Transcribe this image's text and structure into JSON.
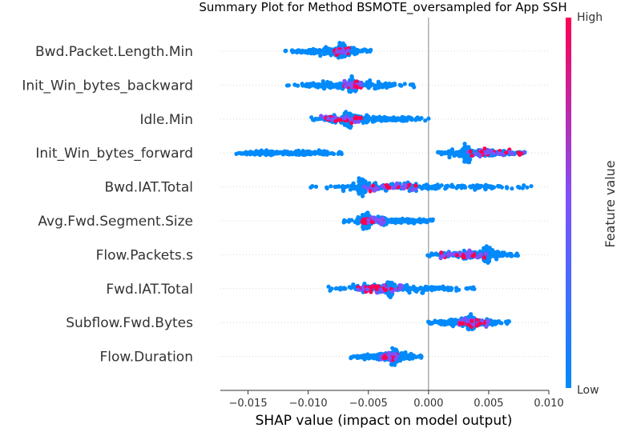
{
  "chart_data": {
    "type": "scatter",
    "title": "Summary Plot for Method BSMOTE_oversampled for App SSH",
    "xlabel": "SHAP value (impact on model output)",
    "xlim": [
      -0.0173,
      0.01
    ],
    "xticks": [
      "−0.015",
      "−0.010",
      "−0.005",
      "0.000",
      "0.005",
      "0.010"
    ],
    "xtick_values": [
      -0.015,
      -0.01,
      -0.005,
      0.0,
      0.005,
      0.01
    ],
    "colorbar": {
      "label": "Feature value",
      "high": "High",
      "low": "Low",
      "low_color": "#008afb",
      "mid_color": "#7c52ff",
      "high_color": "#ff0052"
    },
    "features": [
      {
        "name": "Bwd.Packet.Length.Min",
        "range": [
          -0.012,
          -0.0048
        ],
        "dense_center": -0.0072,
        "dense_halfwidth": 0.0003,
        "high_range": [
          -0.0078,
          -0.0066
        ]
      },
      {
        "name": "Init_Win_bytes_backward",
        "range": [
          -0.0118,
          -0.0012
        ],
        "dense_center": -0.0063,
        "dense_halfwidth": 0.0003,
        "high_range": [
          -0.007,
          -0.0055
        ]
      },
      {
        "name": "Idle.Min",
        "range": [
          -0.0098,
          0.0001
        ],
        "dense_center": -0.0067,
        "dense_halfwidth": 0.0003,
        "high_range": [
          -0.009,
          -0.0055
        ]
      },
      {
        "name": "Init_Win_bytes_forward",
        "range": [
          -0.0162,
          -0.0072
        ],
        "range2": [
          0.0005,
          0.008
        ],
        "dense_center": 0.0032,
        "dense_halfwidth": 0.0003,
        "high_range": [
          0.003,
          0.008
        ]
      },
      {
        "name": "Bwd.IAT.Total",
        "range": [
          -0.01,
          0.0088
        ],
        "dense_center": -0.0055,
        "dense_halfwidth": 0.0003,
        "high_range": [
          -0.0055,
          -0.001
        ]
      },
      {
        "name": "Avg.Fwd.Segment.Size",
        "range": [
          -0.0072,
          0.0004
        ],
        "dense_center": -0.0052,
        "dense_halfwidth": 0.0003,
        "high_range": [
          -0.0055,
          -0.0035
        ]
      },
      {
        "name": "Flow.Packets.s",
        "range": [
          -0.0002,
          0.0075
        ],
        "dense_center": 0.0048,
        "dense_halfwidth": 0.0003,
        "high_range": [
          0.001,
          0.005
        ]
      },
      {
        "name": "Fwd.IAT.Total",
        "range": [
          -0.0085,
          0.0038
        ],
        "dense_center": -0.0032,
        "dense_halfwidth": 0.0002,
        "high_range": [
          -0.006,
          -0.002
        ]
      },
      {
        "name": "Subflow.Fwd.Bytes",
        "range": [
          -0.0001,
          0.0068
        ],
        "dense_center": 0.0035,
        "dense_halfwidth": 0.0003,
        "high_range": [
          0.0025,
          0.005
        ]
      },
      {
        "name": "Flow.Duration",
        "range": [
          -0.0065,
          -0.0004
        ],
        "dense_center": -0.0028,
        "dense_halfwidth": 0.0003,
        "high_range": [
          -0.004,
          -0.0025
        ]
      }
    ]
  }
}
